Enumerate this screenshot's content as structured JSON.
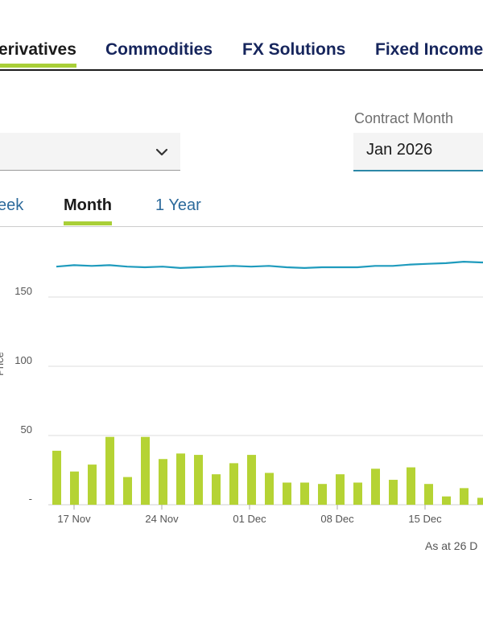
{
  "nav": {
    "tabs": [
      {
        "label": "erivatives",
        "active": true
      },
      {
        "label": "Commodities",
        "active": false
      },
      {
        "label": "FX Solutions",
        "active": false
      },
      {
        "label": "Fixed Income",
        "active": false
      }
    ]
  },
  "filters": {
    "contract_month_label": "Contract Month",
    "contract_month_value": "Jan 2026",
    "left_select_icon": "chevron-down-icon"
  },
  "range_tabs": [
    {
      "label": "eek",
      "active": false
    },
    {
      "label": "Month",
      "active": true
    },
    {
      "label": "1 Year",
      "active": false
    }
  ],
  "chart_data": {
    "type": "bar",
    "ylabel": "Price",
    "y_tick_labels": [
      "-",
      "50",
      "100",
      "150"
    ],
    "y_ticks": [
      0,
      50,
      100,
      150
    ],
    "ylim": [
      0,
      200
    ],
    "x_tick_labels": [
      "17 Nov",
      "24 Nov",
      "01 Dec",
      "08 Dec",
      "15 Dec"
    ],
    "grid": true,
    "colors": {
      "volume": "#b5d334",
      "price": "#1f9bbd"
    },
    "series": [
      {
        "kind": "bar",
        "values": [
          39,
          24,
          29,
          49,
          20,
          49,
          33,
          37,
          36,
          22,
          30,
          36,
          23,
          16,
          16,
          15,
          22,
          16,
          26,
          18,
          27,
          15,
          6,
          12,
          5
        ]
      },
      {
        "kind": "line",
        "values": [
          172,
          173,
          172.5,
          173,
          172,
          171.5,
          172,
          171,
          171.5,
          172,
          172.5,
          172,
          172.5,
          171.5,
          171,
          171.5,
          171.5,
          171.5,
          172.5,
          172.5,
          173.5,
          174,
          174.5,
          175.5,
          175
        ]
      }
    ]
  },
  "footnote": "As at 26 D"
}
